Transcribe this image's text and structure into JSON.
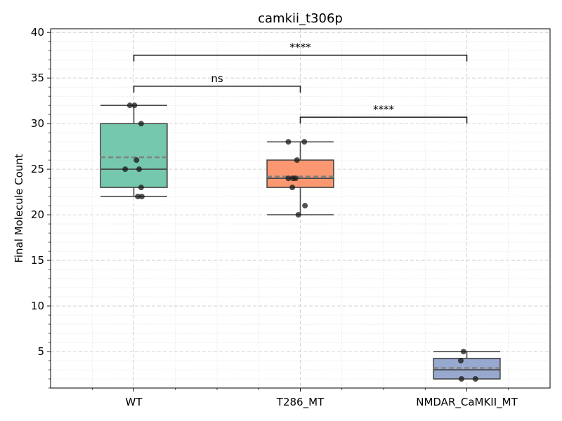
{
  "chart_data": {
    "type": "box",
    "title": "camkii_t306p",
    "xlabel": "",
    "ylabel": "Final Molecule Count",
    "ylim": [
      1,
      40.4
    ],
    "yticks": [
      5,
      10,
      15,
      20,
      25,
      30,
      35,
      40
    ],
    "grid": true,
    "categories": [
      "WT",
      "T286_MT",
      "NMDAR_CaMKII_MT"
    ],
    "colors": [
      "#66c2a5",
      "#fc8d62",
      "#8da0cb"
    ],
    "boxes": [
      {
        "category": "WT",
        "whisker_low": 22,
        "q1": 23,
        "median": 25,
        "q3": 30,
        "whisker_high": 32,
        "mean": 26.3,
        "points": [
          32,
          32,
          30,
          26,
          25,
          25,
          23,
          22,
          22
        ]
      },
      {
        "category": "T286_MT",
        "whisker_low": 20,
        "q1": 23,
        "median": 24,
        "q3": 26,
        "whisker_high": 28,
        "mean": 24.2,
        "points": [
          28,
          28,
          26,
          24,
          24,
          24,
          23,
          21,
          20
        ]
      },
      {
        "category": "NMDAR_CaMKII_MT",
        "whisker_low": 2,
        "q1": 2,
        "median": 3,
        "q3": 4.25,
        "whisker_high": 5,
        "mean": 3.2,
        "points": [
          5,
          4,
          2,
          2
        ]
      }
    ],
    "significance": [
      {
        "from": "WT",
        "to": "T286_MT",
        "label": "ns",
        "y": 34.1
      },
      {
        "from": "T286_MT",
        "to": "NMDAR_CaMKII_MT",
        "label": "****",
        "y": 30.7
      },
      {
        "from": "WT",
        "to": "NMDAR_CaMKII_MT",
        "label": "****",
        "y": 37.5
      }
    ]
  }
}
